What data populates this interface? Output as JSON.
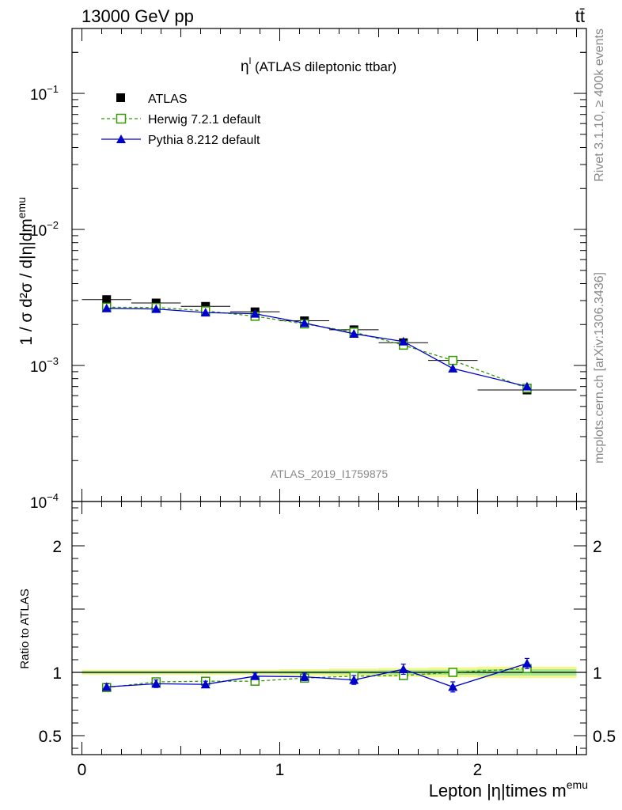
{
  "header": {
    "energy_label": "13000 GeV pp",
    "process_label": "tt̄"
  },
  "side_labels": {
    "rivet": "Rivet 3.1.10, ≥ 400k events",
    "mcplots": "mcplots.cern.ch [arXiv:1306.3436]"
  },
  "chart_data": [
    {
      "type": "scatter",
      "title": "η",
      "title_sup": "l",
      "title_suffix": " (ATLAS dileptonic ttbar)",
      "watermark": "ATLAS_2019_I1759875",
      "ylabel": "1 / σ d²σ / d|η|dm",
      "ylabel_sup": "emu",
      "yscale": "log",
      "ylim": [
        0.0001,
        0.3
      ],
      "xlim": [
        -0.05,
        2.55
      ],
      "ytick_labels": [
        {
          "value": 0.1,
          "mant": "10",
          "exp": "−1"
        },
        {
          "value": 0.01,
          "mant": "10",
          "exp": "−2"
        },
        {
          "value": 0.001,
          "mant": "10",
          "exp": "−3"
        },
        {
          "value": 0.0001,
          "mant": "10",
          "exp": "−4"
        }
      ],
      "legend": {
        "position": "top-left",
        "entries": [
          "ATLAS",
          "Herwig 7.2.1 default",
          "Pythia 8.212 default"
        ]
      },
      "x": [
        0.125,
        0.375,
        0.625,
        0.875,
        1.125,
        1.375,
        1.625,
        1.875,
        2.25
      ],
      "x_err": [
        0.125,
        0.125,
        0.125,
        0.125,
        0.125,
        0.125,
        0.125,
        0.125,
        0.25
      ],
      "series": [
        {
          "name": "ATLAS",
          "color": "#000000",
          "marker": "square-filled",
          "values": [
            0.00305,
            0.00288,
            0.00272,
            0.00248,
            0.00213,
            0.00183,
            0.00147,
            0.00109,
            0.00066
          ]
        },
        {
          "name": "Herwig 7.2.1 default",
          "color": "#339900",
          "marker": "square-open",
          "line": "dashed",
          "values": [
            0.00268,
            0.00267,
            0.00252,
            0.0023,
            0.00202,
            0.00176,
            0.00141,
            0.00109,
            0.00068
          ]
        },
        {
          "name": "Pythia 8.212 default",
          "color": "#0000cc",
          "marker": "triangle-filled",
          "line": "solid",
          "values": [
            0.00263,
            0.0026,
            0.00245,
            0.0024,
            0.00205,
            0.00171,
            0.0015,
            0.00095,
            0.0007
          ]
        }
      ]
    },
    {
      "type": "scatter",
      "ylabel": "Ratio to ATLAS",
      "xlabel": "Lepton |η|times m",
      "xlabel_sup": "emu",
      "ylim": [
        0.35,
        2.35
      ],
      "xlim": [
        -0.05,
        2.55
      ],
      "xtick_labels": [
        {
          "value": 0,
          "label": "0"
        },
        {
          "value": 1,
          "label": "1"
        },
        {
          "value": 2,
          "label": "2"
        }
      ],
      "ytick_labels": [
        {
          "value": 0.5,
          "label": "0.5"
        },
        {
          "value": 1,
          "label": "1"
        },
        {
          "value": 2,
          "label": "2"
        }
      ],
      "band_halfwidth": [
        0.02,
        0.02,
        0.02,
        0.02,
        0.025,
        0.03,
        0.035,
        0.04,
        0.045
      ],
      "band_inner_halfwidth": [
        0.01,
        0.01,
        0.01,
        0.01,
        0.012,
        0.015,
        0.018,
        0.02,
        0.025
      ],
      "series": [
        {
          "name": "Herwig 7.2.1 default",
          "color": "#339900",
          "marker": "square-open",
          "line": "dashed",
          "values": [
            0.88,
            0.925,
            0.93,
            0.93,
            0.955,
            0.97,
            0.975,
            1.0,
            1.03
          ],
          "errors": [
            0.01,
            0.01,
            0.01,
            0.01,
            0.01,
            0.01,
            0.01,
            0.01,
            0.02
          ]
        },
        {
          "name": "Pythia 8.212 default",
          "color": "#0000cc",
          "marker": "triangle-filled",
          "line": "solid",
          "values": [
            0.885,
            0.91,
            0.905,
            0.97,
            0.965,
            0.94,
            1.025,
            0.885,
            1.07
          ],
          "errors": [
            0.025,
            0.03,
            0.025,
            0.025,
            0.03,
            0.035,
            0.04,
            0.04,
            0.04
          ]
        }
      ]
    }
  ]
}
